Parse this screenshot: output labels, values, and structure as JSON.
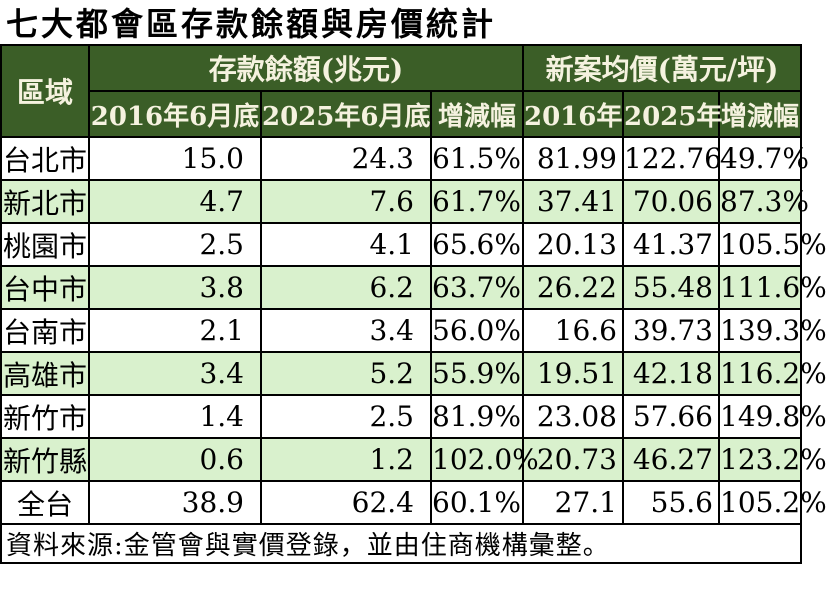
{
  "title": "七大都會區存款餘額與房價統計",
  "source": "資料來源:金管會與實價登錄，並由住商機構彙整。",
  "colors": {
    "header_bg": "#3b5e27",
    "header_text": "#f5f2df",
    "row_alt_bg": "#d9f1cd",
    "row_bg": "#ffffff",
    "border": "#000000"
  },
  "table": {
    "corner_header": "區域",
    "groups": [
      "存款餘額(兆元)",
      "新案均價(萬元/坪)"
    ],
    "sub_headers": [
      "2016年6月底",
      "2025年6月底",
      "增減幅",
      "2016年",
      "2025年",
      "增減幅"
    ],
    "rows": [
      [
        "台北市",
        "15.0",
        "24.3",
        "61.5%",
        "81.99",
        "122.76",
        "49.7%"
      ],
      [
        "新北市",
        "4.7",
        "7.6",
        "61.7%",
        "37.41",
        "70.06",
        "87.3%"
      ],
      [
        "桃園市",
        "2.5",
        "4.1",
        "65.6%",
        "20.13",
        "41.37",
        "105.5%"
      ],
      [
        "台中市",
        "3.8",
        "6.2",
        "63.7%",
        "26.22",
        "55.48",
        "111.6%"
      ],
      [
        "台南市",
        "2.1",
        "3.4",
        "56.0%",
        "16.6",
        "39.73",
        "139.3%"
      ],
      [
        "高雄市",
        "3.4",
        "5.2",
        "55.9%",
        "19.51",
        "42.18",
        "116.2%"
      ],
      [
        "新竹市",
        "1.4",
        "2.5",
        "81.9%",
        "23.08",
        "57.66",
        "149.8%"
      ],
      [
        "新竹縣",
        "0.6",
        "1.2",
        "102.0%",
        "20.73",
        "46.27",
        "123.2%"
      ],
      [
        "全台",
        "38.9",
        "62.4",
        "60.1%",
        "27.1",
        "55.6",
        "105.2%"
      ]
    ]
  },
  "chart_data": {
    "type": "table",
    "title": "七大都會區存款餘額與房價統計",
    "categories": [
      "台北市",
      "新北市",
      "桃園市",
      "台中市",
      "台南市",
      "高雄市",
      "新竹市",
      "新竹縣",
      "全台"
    ],
    "column_groups": [
      {
        "label": "存款餘額(兆元)",
        "columns": [
          "2016年6月底",
          "2025年6月底",
          "增減幅"
        ]
      },
      {
        "label": "新案均價(萬元/坪)",
        "columns": [
          "2016年",
          "2025年",
          "增減幅"
        ]
      }
    ],
    "series": [
      {
        "name": "存款餘額 2016年6月底 (兆元)",
        "values": [
          15.0,
          4.7,
          2.5,
          3.8,
          2.1,
          3.4,
          1.4,
          0.6,
          38.9
        ]
      },
      {
        "name": "存款餘額 2025年6月底 (兆元)",
        "values": [
          24.3,
          7.6,
          4.1,
          6.2,
          3.4,
          5.2,
          2.5,
          1.2,
          62.4
        ]
      },
      {
        "name": "存款餘額 增減幅 (%)",
        "values": [
          61.5,
          61.7,
          65.6,
          63.7,
          56.0,
          55.9,
          81.9,
          102.0,
          60.1
        ]
      },
      {
        "name": "新案均價 2016年 (萬元/坪)",
        "values": [
          81.99,
          37.41,
          20.13,
          26.22,
          16.6,
          19.51,
          23.08,
          20.73,
          27.1
        ]
      },
      {
        "name": "新案均價 2025年 (萬元/坪)",
        "values": [
          122.76,
          70.06,
          41.37,
          55.48,
          39.73,
          42.18,
          57.66,
          46.27,
          55.6
        ]
      },
      {
        "name": "新案均價 增減幅 (%)",
        "values": [
          49.7,
          87.3,
          105.5,
          111.6,
          139.3,
          116.2,
          149.8,
          123.2,
          105.2
        ]
      }
    ],
    "source": "資料來源:金管會與實價登錄，並由住商機構彙整。"
  }
}
